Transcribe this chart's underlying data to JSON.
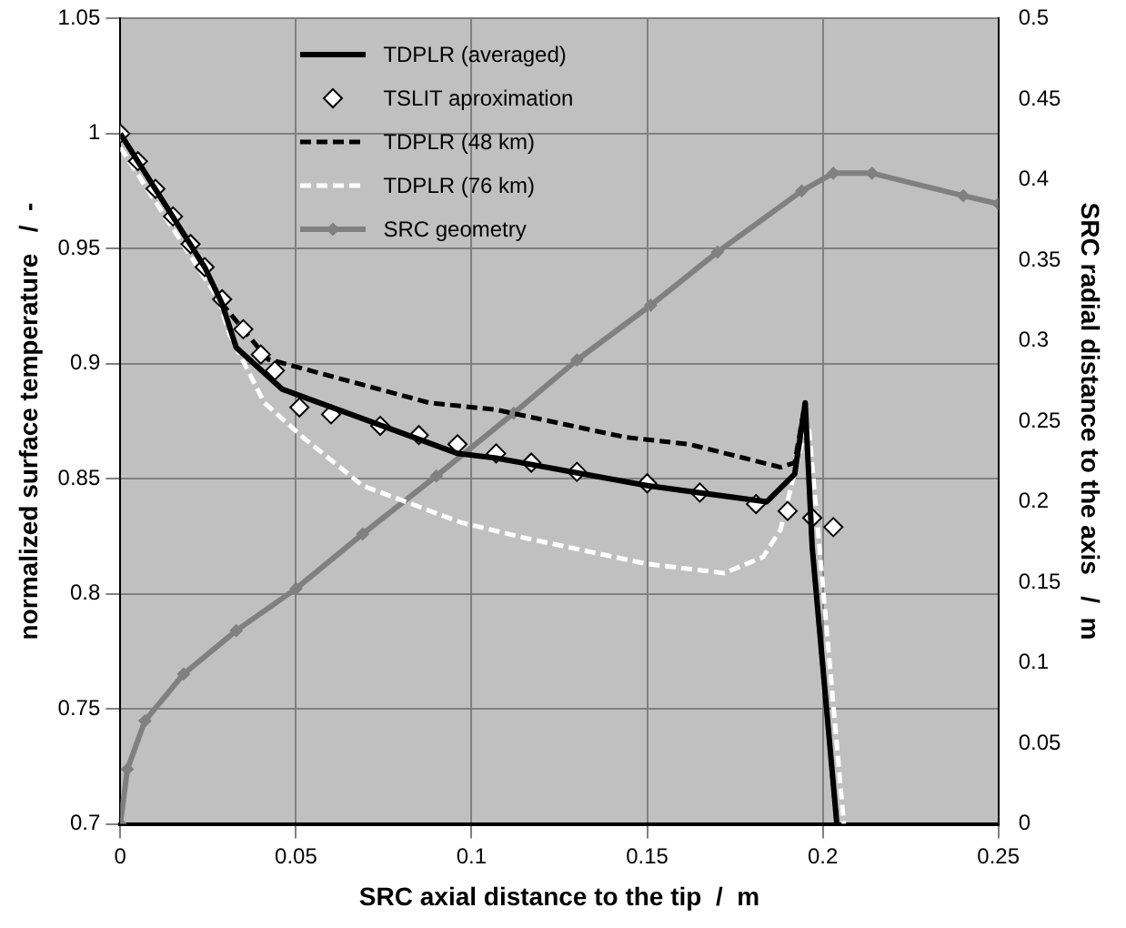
{
  "chart_data": {
    "type": "line",
    "xlabel": "SRC axial distance to the tip  /  m",
    "ylabel": "normalized surface temperature   /  -",
    "y2label": "SRC radial distance to the axis   /  m",
    "xlim": [
      0,
      0.25
    ],
    "xticks": [
      0,
      0.05,
      0.1,
      0.15,
      0.2,
      0.25
    ],
    "ylim": [
      0.7,
      1.05
    ],
    "yticks": [
      0.7,
      0.75,
      0.8,
      0.85,
      0.9,
      0.95,
      1,
      1.05
    ],
    "y2lim": [
      0,
      0.5
    ],
    "y2ticks": [
      0,
      0.05,
      0.1,
      0.15,
      0.2,
      0.25,
      0.3,
      0.35,
      0.4,
      0.45,
      0.5
    ],
    "grid": true,
    "legend": "top",
    "series": [
      {
        "name": "TDPLR (averaged)",
        "color": "#000000",
        "marker": "none",
        "line_style": "solid",
        "x": [
          0,
          0.024,
          0.029,
          0.033,
          0.046,
          0.096,
          0.107,
          0.15,
          0.184,
          0.192,
          0.195,
          0.197,
          0.204
        ],
        "values": [
          1.0,
          0.942,
          0.926,
          0.907,
          0.889,
          0.861,
          0.859,
          0.847,
          0.84,
          0.852,
          0.883,
          0.82,
          0.7
        ]
      },
      {
        "name": "TSLIT aproximation",
        "type": "scatter",
        "color": "#ffffff",
        "marker": "diamond",
        "x": [
          0,
          0.005,
          0.01,
          0.015,
          0.02,
          0.024,
          0.029,
          0.035,
          0.04,
          0.044,
          0.051,
          0.06,
          0.074,
          0.085,
          0.096,
          0.107,
          0.117,
          0.13,
          0.15,
          0.165,
          0.181,
          0.19,
          0.197,
          0.203
        ],
        "values": [
          1.0,
          0.988,
          0.976,
          0.964,
          0.952,
          0.942,
          0.928,
          0.915,
          0.904,
          0.897,
          0.881,
          0.878,
          0.873,
          0.869,
          0.865,
          0.861,
          0.857,
          0.853,
          0.848,
          0.844,
          0.839,
          0.836,
          0.833,
          0.829
        ]
      },
      {
        "name": "TDPLR (48 km)",
        "color": "#000000",
        "marker": "none",
        "line_style": "dashed",
        "x": [
          0,
          0.024,
          0.029,
          0.042,
          0.088,
          0.107,
          0.144,
          0.162,
          0.188,
          0.192,
          0.195,
          0.197,
          0.204
        ],
        "values": [
          1.0,
          0.942,
          0.926,
          0.902,
          0.883,
          0.88,
          0.868,
          0.865,
          0.855,
          0.857,
          0.883,
          0.82,
          0.7
        ]
      },
      {
        "name": "TDPLR (76 km)",
        "color": "#ffffff",
        "marker": "none",
        "line_style": "dashed",
        "x": [
          0,
          0.028,
          0.031,
          0.041,
          0.052,
          0.069,
          0.097,
          0.116,
          0.15,
          0.172,
          0.183,
          0.188,
          0.194,
          0.196,
          0.206
        ],
        "values": [
          0.994,
          0.928,
          0.913,
          0.883,
          0.868,
          0.847,
          0.831,
          0.824,
          0.813,
          0.809,
          0.816,
          0.828,
          0.865,
          0.873,
          0.7
        ]
      },
      {
        "name": "SRC geometry",
        "color": "#808080",
        "marker": "diamond",
        "line_style": "solid",
        "axis": "y2",
        "x": [
          0,
          0.002,
          0.007,
          0.018,
          0.033,
          0.05,
          0.069,
          0.09,
          0.112,
          0.13,
          0.151,
          0.17,
          0.194,
          0.203,
          0.214,
          0.24,
          0.25
        ],
        "values": [
          0,
          0.034,
          0.064,
          0.093,
          0.12,
          0.146,
          0.18,
          0.216,
          0.255,
          0.288,
          0.322,
          0.355,
          0.393,
          0.404,
          0.404,
          0.39,
          0.385
        ]
      }
    ]
  }
}
